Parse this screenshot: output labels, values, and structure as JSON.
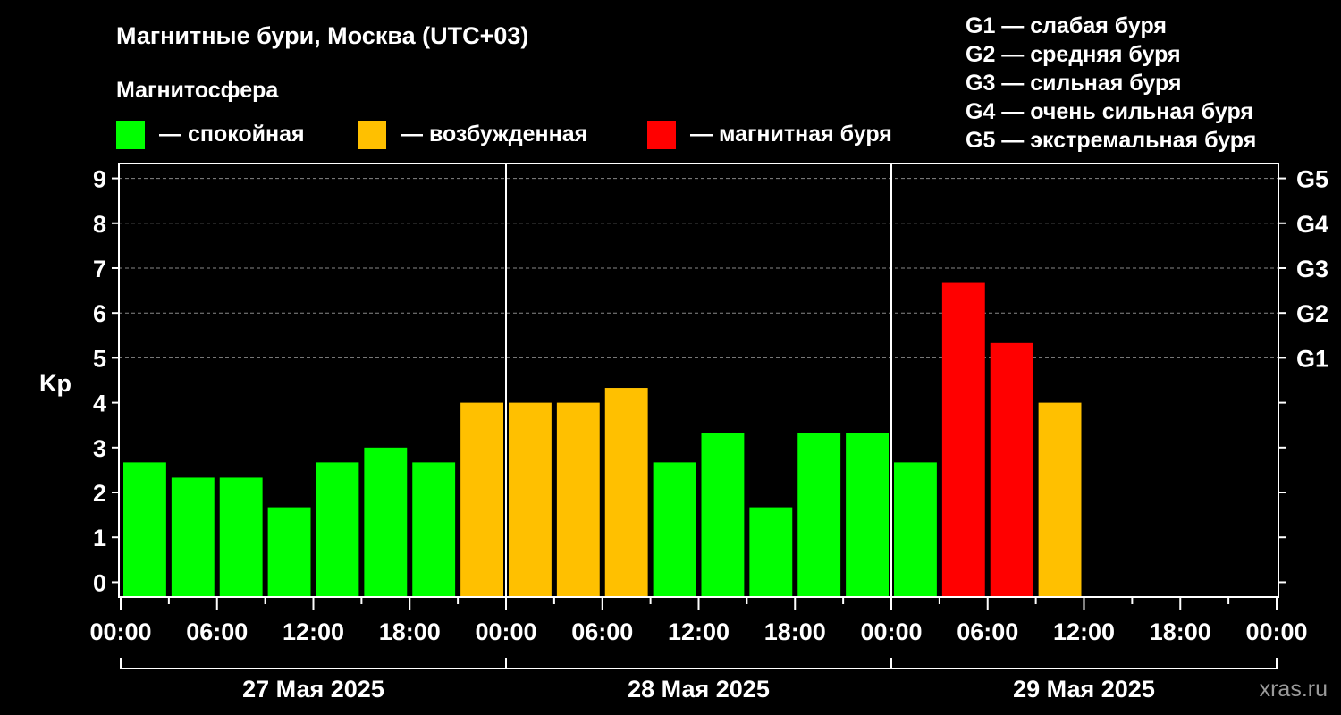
{
  "chart_data": {
    "type": "bar",
    "title": "Магнитные бури, Москва (UTC+03)",
    "legend_title": "Магнитосфера",
    "legend": [
      {
        "label": "— спокойная",
        "color": "#00ff00"
      },
      {
        "label": "— возбужденная",
        "color": "#ffc000"
      },
      {
        "label": "— магнитная буря",
        "color": "#ff0000"
      }
    ],
    "g_legend": [
      "G1 — слабая буря",
      "G2 — средняя буря",
      "G3 — сильная буря",
      "G4 — очень сильная буря",
      "G5 — экстремальная буря"
    ],
    "ylabel": "Kp",
    "ylim": [
      -0.33,
      9.33
    ],
    "yticks": [
      "0",
      "1",
      "2",
      "3",
      "4",
      "5",
      "6",
      "7",
      "8",
      "9"
    ],
    "right_ticks": [
      {
        "kp": 5,
        "label": "G1"
      },
      {
        "kp": 6,
        "label": "G2"
      },
      {
        "kp": 7,
        "label": "G3"
      },
      {
        "kp": 8,
        "label": "G4"
      },
      {
        "kp": 9,
        "label": "G5"
      }
    ],
    "grid": "horizontal dashed at Kp 5–9",
    "xticks": [
      "00:00",
      "06:00",
      "12:00",
      "18:00",
      "00:00",
      "06:00",
      "12:00",
      "18:00",
      "00:00",
      "06:00",
      "12:00",
      "18:00",
      "00:00"
    ],
    "days": [
      "27 Мая 2025",
      "28 Мая 2025",
      "29 Мая 2025"
    ],
    "interval_hours": 3,
    "values": [
      2.67,
      2.33,
      2.33,
      1.67,
      2.67,
      3.0,
      2.67,
      4.0,
      4.0,
      4.0,
      4.33,
      2.67,
      3.33,
      1.67,
      3.33,
      3.33,
      2.67,
      6.67,
      5.33,
      4.0
    ],
    "levels": [
      "quiet",
      "quiet",
      "quiet",
      "quiet",
      "quiet",
      "quiet",
      "quiet",
      "active",
      "active",
      "active",
      "active",
      "quiet",
      "quiet",
      "quiet",
      "quiet",
      "quiet",
      "quiet",
      "storm",
      "storm",
      "active"
    ],
    "level_colors": {
      "quiet": "#00ff00",
      "active": "#ffc000",
      "storm": "#ff0000"
    }
  },
  "watermark": "xras.ru"
}
